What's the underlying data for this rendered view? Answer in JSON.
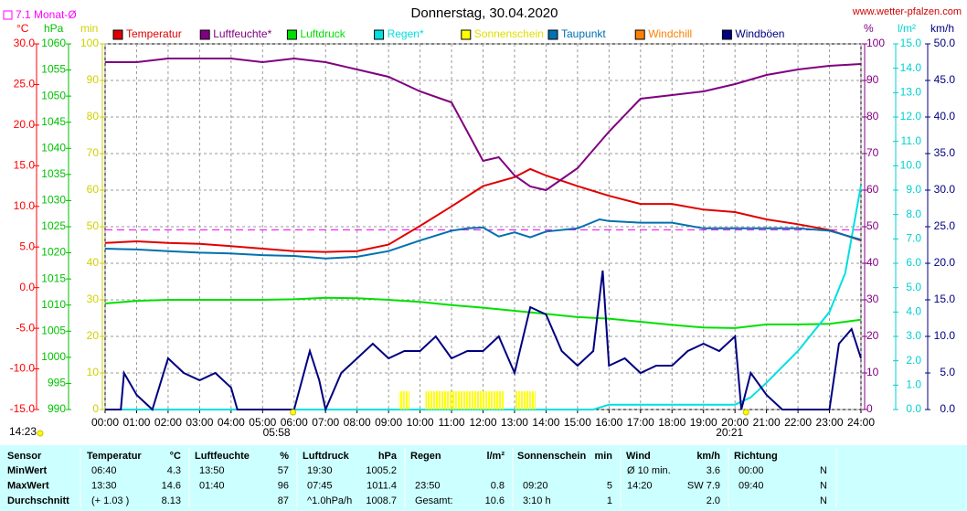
{
  "chart_data": {
    "type": "line",
    "title": "Donnerstag, 30.04.2020",
    "source": "www.wetter-pfalzen.com",
    "monthly_average": {
      "label": "7.1 Monat-Ø",
      "value": 7.1,
      "axis": 0,
      "color": "#ff00ff"
    },
    "current_time": "14:23",
    "sun_events": [
      {
        "label": "05:58",
        "x": 5.967
      },
      {
        "label": "20:21",
        "x": 20.35
      }
    ],
    "xlim": [
      0,
      24
    ],
    "xticks": [
      {
        "value": 0,
        "label": "00:00"
      },
      {
        "value": 1,
        "label": "01:00"
      },
      {
        "value": 2,
        "label": "02:00"
      },
      {
        "value": 3,
        "label": "03:00"
      },
      {
        "value": 4,
        "label": "04:00"
      },
      {
        "value": 5,
        "label": "05:00"
      },
      {
        "value": 6,
        "label": "06:00"
      },
      {
        "value": 7,
        "label": "07:00"
      },
      {
        "value": 8,
        "label": "08:00"
      },
      {
        "value": 9,
        "label": "09:00"
      },
      {
        "value": 10,
        "label": "10:00"
      },
      {
        "value": 11,
        "label": "11:00"
      },
      {
        "value": 12,
        "label": "12:00"
      },
      {
        "value": 13,
        "label": "13:00"
      },
      {
        "value": 14,
        "label": "14:00"
      },
      {
        "value": 15,
        "label": "15:00"
      },
      {
        "value": 16,
        "label": "16:00"
      },
      {
        "value": 17,
        "label": "17:00"
      },
      {
        "value": 18,
        "label": "18:00"
      },
      {
        "value": 19,
        "label": "19:00"
      },
      {
        "value": 20,
        "label": "20:00"
      },
      {
        "value": 21,
        "label": "21:00"
      },
      {
        "value": 22,
        "label": "22:00"
      },
      {
        "value": 23,
        "label": "23:00"
      },
      {
        "value": 24,
        "label": "24:00"
      }
    ],
    "grid": true,
    "axes": [
      {
        "label": "°C",
        "color": "#ff0000",
        "lim": [
          -15,
          30
        ],
        "ticks": [
          {
            "value": -15,
            "label": "-15.0"
          },
          {
            "value": -10,
            "label": "-10.0"
          },
          {
            "value": -5,
            "label": "-5.0"
          },
          {
            "value": 0,
            "label": "0.0"
          },
          {
            "value": 5,
            "label": "5.0"
          },
          {
            "value": 10,
            "label": "10.0"
          },
          {
            "value": 15,
            "label": "15.0"
          },
          {
            "value": 20,
            "label": "20.0"
          },
          {
            "value": 25,
            "label": "25.0"
          },
          {
            "value": 30,
            "label": "30.0"
          }
        ]
      },
      {
        "label": "hPa",
        "color": "#00c000",
        "lim": [
          990,
          1060
        ],
        "ticks": [
          990,
          995,
          1000,
          1005,
          1010,
          1015,
          1020,
          1025,
          1030,
          1035,
          1040,
          1045,
          1050,
          1055,
          1060
        ]
      },
      {
        "label": "min",
        "color": "#d0d000",
        "lim": [
          0,
          100
        ],
        "ticks": [
          0,
          10,
          20,
          30,
          40,
          50,
          60,
          70,
          80,
          90,
          100
        ]
      },
      {
        "label": "%",
        "color": "#800080",
        "lim": [
          0,
          100
        ],
        "ticks": [
          0,
          10,
          20,
          30,
          40,
          50,
          60,
          70,
          80,
          90,
          100
        ]
      },
      {
        "label": "l/m²",
        "color": "#00d0d0",
        "lim": [
          0,
          15
        ],
        "ticks": [
          {
            "value": 0,
            "label": "0.0"
          },
          {
            "value": 1,
            "label": "1.0"
          },
          {
            "value": 2,
            "label": "2.0"
          },
          {
            "value": 3,
            "label": "3.0"
          },
          {
            "value": 4,
            "label": "4.0"
          },
          {
            "value": 5,
            "label": "5.0"
          },
          {
            "value": 6,
            "label": "6.0"
          },
          {
            "value": 7,
            "label": "7.0"
          },
          {
            "value": 8,
            "label": "8.0"
          },
          {
            "value": 9,
            "label": "9.0"
          },
          {
            "value": 10,
            "label": "10.0"
          },
          {
            "value": 11,
            "label": "11.0"
          },
          {
            "value": 12,
            "label": "12.0"
          },
          {
            "value": 13,
            "label": "13.0"
          },
          {
            "value": 14,
            "label": "14.0"
          },
          {
            "value": 15,
            "label": "15.0"
          }
        ]
      },
      {
        "label": "km/h",
        "color": "#000080",
        "lim": [
          0,
          50
        ],
        "ticks": [
          {
            "value": 0,
            "label": "0.0"
          },
          {
            "value": 5,
            "label": "5.0"
          },
          {
            "value": 10,
            "label": "10.0"
          },
          {
            "value": 15,
            "label": "15.0"
          },
          {
            "value": 20,
            "label": "20.0"
          },
          {
            "value": 25,
            "label": "25.0"
          },
          {
            "value": 30,
            "label": "30.0"
          },
          {
            "value": 35,
            "label": "35.0"
          },
          {
            "value": 40,
            "label": "40.0"
          },
          {
            "value": 45,
            "label": "45.0"
          },
          {
            "value": 50,
            "label": "50.0"
          }
        ]
      }
    ],
    "series": [
      {
        "name": "Temperatur",
        "color": "#e00000",
        "axis": 0,
        "kind": "line",
        "x": [
          0,
          1,
          2,
          3,
          4,
          5,
          6,
          7,
          8,
          9,
          10,
          11,
          12,
          13,
          13.5,
          14,
          15,
          16,
          17,
          18,
          19,
          20,
          21,
          22,
          23,
          24
        ],
        "values": [
          5.5,
          5.7,
          5.5,
          5.4,
          5.1,
          4.8,
          4.5,
          4.4,
          4.5,
          5.3,
          7.6,
          10.0,
          12.5,
          13.6,
          14.6,
          13.8,
          12.5,
          11.3,
          10.3,
          10.3,
          9.6,
          9.3,
          8.4,
          7.8,
          7.1,
          5.8
        ]
      },
      {
        "name": "Luftfeuchte*",
        "color": "#800080",
        "axis": 3,
        "kind": "line",
        "x": [
          0,
          1,
          2,
          3,
          4,
          5,
          6,
          7,
          8,
          9,
          10,
          11,
          11.5,
          12,
          12.5,
          13,
          13.5,
          14,
          14.5,
          15,
          16,
          17,
          18,
          19,
          20,
          21,
          22,
          23,
          24
        ],
        "values": [
          95,
          95,
          96,
          96,
          96,
          95,
          96,
          95,
          93,
          91,
          87,
          84,
          76,
          68,
          69,
          64,
          61,
          60,
          63,
          66,
          76,
          85,
          86,
          87,
          89,
          91.5,
          93,
          94,
          94.5
        ]
      },
      {
        "name": "Luftdruck",
        "color": "#00e000",
        "axis": 1,
        "kind": "line",
        "x": [
          0,
          1,
          2,
          3,
          4,
          5,
          6,
          7,
          8,
          9,
          10,
          11,
          12,
          13,
          14,
          15,
          16,
          17,
          18,
          19,
          20,
          21,
          22,
          23,
          24
        ],
        "values": [
          1010.3,
          1010.8,
          1011,
          1011,
          1011,
          1011,
          1011.1,
          1011.4,
          1011.3,
          1011,
          1010.6,
          1010,
          1009.5,
          1008.9,
          1008.3,
          1007.7,
          1007.4,
          1006.8,
          1006.2,
          1005.7,
          1005.6,
          1006.3,
          1006.3,
          1006.4,
          1007.2
        ]
      },
      {
        "name": "Regen*",
        "color": "#00e0e0",
        "axis": 4,
        "kind": "line",
        "x": [
          0,
          15.5,
          16,
          20,
          20.5,
          21,
          22,
          23,
          23.5,
          24
        ],
        "values": [
          0,
          0,
          0.2,
          0.2,
          0.5,
          1.1,
          2.4,
          4.0,
          5.6,
          9.2
        ]
      },
      {
        "name": "Sonnenschein",
        "color": "#ffff00",
        "axis": 2,
        "kind": "bar",
        "width": 0.1667,
        "x": [
          9.33,
          9.5,
          10.17,
          10.33,
          10.5,
          10.67,
          10.83,
          11,
          11.17,
          11.33,
          11.5,
          11.67,
          11.83,
          12,
          12.17,
          12.33,
          12.5,
          13.0,
          13.17,
          13.33,
          13.5
        ],
        "values": [
          5,
          5,
          5,
          5,
          5,
          5,
          5,
          5,
          5,
          5,
          5,
          5,
          5,
          5,
          5,
          5,
          5,
          5,
          5,
          5,
          5
        ]
      },
      {
        "name": "Taupunkt",
        "color": "#0070b0",
        "axis": 0,
        "kind": "line",
        "x": [
          0,
          1,
          2,
          3,
          4,
          5,
          6,
          7,
          8,
          9,
          10,
          11,
          11.5,
          12,
          12.5,
          13,
          13.5,
          14,
          15,
          15.7,
          16,
          17,
          18,
          19,
          20,
          21,
          22,
          23,
          24
        ],
        "values": [
          4.8,
          4.7,
          4.5,
          4.3,
          4.2,
          4.0,
          3.9,
          3.6,
          3.8,
          4.5,
          5.8,
          7.0,
          7.3,
          7.4,
          6.3,
          6.8,
          6.2,
          6.9,
          7.3,
          8.4,
          8.2,
          8.0,
          8.0,
          7.3,
          7.3,
          7.3,
          7.3,
          7.0,
          5.9
        ]
      },
      {
        "name": "Windchill",
        "color": "#ff8000",
        "axis": 0,
        "kind": "line",
        "x": [],
        "values": []
      },
      {
        "name": "Windböen",
        "color": "#000080",
        "axis": 5,
        "kind": "line",
        "x": [
          0,
          0.5,
          0.6,
          1,
          1.5,
          2,
          2.5,
          3,
          3.5,
          4,
          4.2,
          5,
          6,
          6.5,
          6.8,
          7,
          7.5,
          8,
          8.5,
          9,
          9.5,
          10,
          10.5,
          11,
          11.5,
          12,
          12.5,
          13,
          13.5,
          14,
          14.5,
          15,
          15.5,
          15.8,
          16,
          16.5,
          17,
          17.5,
          18,
          18.5,
          19,
          19.5,
          20,
          20.2,
          20.5,
          21,
          21.5,
          22,
          23,
          23.3,
          23.7,
          24
        ],
        "values": [
          0,
          0,
          5,
          2,
          0,
          7,
          5,
          4,
          5,
          3,
          0,
          0,
          0,
          8,
          4,
          0,
          5,
          7,
          9,
          7,
          8,
          8,
          10,
          7,
          8,
          8,
          10,
          5,
          14,
          13,
          8,
          6,
          8,
          19,
          6,
          7,
          5,
          6,
          6,
          8,
          9,
          8,
          10,
          0,
          5,
          2,
          0,
          0,
          0,
          9,
          11,
          7
        ]
      }
    ]
  },
  "table": {
    "header": [
      "Sensor",
      "Temperatur",
      "°C",
      "Luftfeuchte",
      "%",
      "Luftdruck",
      "hPa",
      "Regen",
      "l/m²",
      "Sonnenschein",
      "min",
      "Wind",
      "km/h",
      "Richtung"
    ],
    "rows": [
      [
        "MinWert",
        "06:40",
        "4.3",
        "13:50",
        "57",
        "19:30",
        "1005.2",
        null,
        null,
        null,
        null,
        "Ø 10 min.",
        "3.6",
        "00:00",
        "N"
      ],
      [
        "MaxWert",
        "13:30",
        "14.6",
        "01:40",
        "96",
        "07:45",
        "1011.4",
        "23:50",
        "0.8",
        "09:20",
        "5",
        "14:20",
        "SW 7.9",
        "09:40",
        "N"
      ],
      [
        "Durchschnitt",
        "(+ 1.03 )",
        "8.13",
        null,
        "87",
        "^1.0hPa/h",
        "1008.7",
        "Gesamt:",
        "10.6",
        "3:10 h",
        "1",
        null,
        "2.0",
        null,
        "N"
      ]
    ]
  }
}
